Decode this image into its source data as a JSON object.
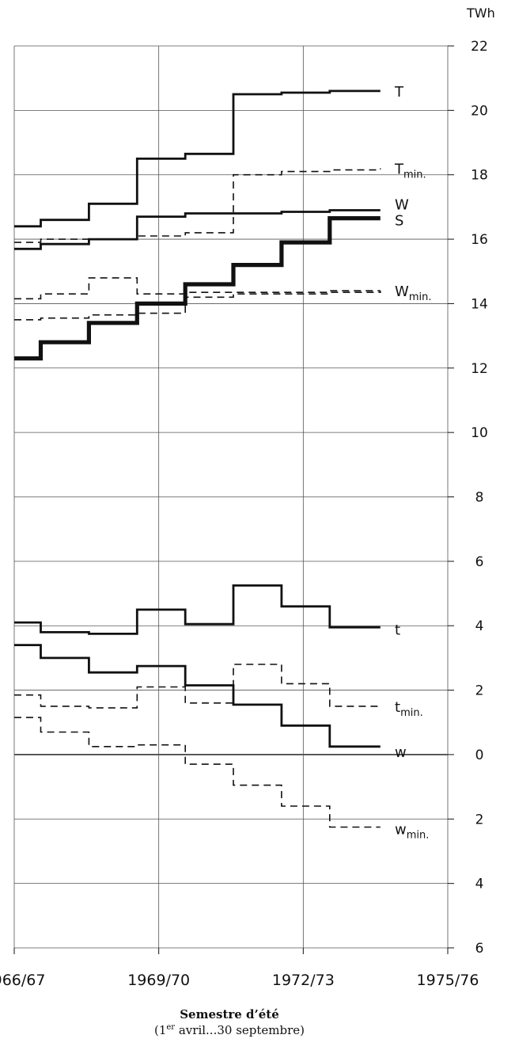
{
  "chart_data": {
    "type": "line",
    "step": true,
    "unit": "TWh",
    "ylim": [
      -6,
      22
    ],
    "y_ticks": [
      {
        "value": 22,
        "label": "22"
      },
      {
        "value": 20,
        "label": "20"
      },
      {
        "value": 18,
        "label": "18"
      },
      {
        "value": 16,
        "label": "16"
      },
      {
        "value": 14,
        "label": "14"
      },
      {
        "value": 12,
        "label": "12"
      },
      {
        "value": 10,
        "label": "10"
      },
      {
        "value": 8,
        "label": "8"
      },
      {
        "value": 6,
        "label": "6"
      },
      {
        "value": 4,
        "label": "4"
      },
      {
        "value": 2,
        "label": "2"
      },
      {
        "value": 0,
        "label": "0"
      },
      {
        "value": -2,
        "label": "2"
      },
      {
        "value": -4,
        "label": "4"
      },
      {
        "value": -6,
        "label": "6"
      }
    ],
    "xlim": [
      0,
      9
    ],
    "x_ticks": [
      {
        "value": 0,
        "label": "1966/67"
      },
      {
        "value": 3,
        "label": "1969/70"
      },
      {
        "value": 6,
        "label": "1972/73"
      },
      {
        "value": 9,
        "label": "1975/76"
      }
    ],
    "x_gridlines": [
      0,
      3,
      6,
      9
    ],
    "grid": true,
    "series": [
      {
        "name": "T",
        "sub": "",
        "style": "solid",
        "weight": "medium",
        "points": [
          [
            0,
            16.4
          ],
          [
            0.55,
            16.6
          ],
          [
            1.55,
            17.1
          ],
          [
            2.55,
            18.5
          ],
          [
            3.55,
            18.65
          ],
          [
            4.55,
            20.5
          ],
          [
            5.55,
            20.55
          ],
          [
            6.55,
            20.6
          ],
          [
            7.6,
            20.6
          ]
        ]
      },
      {
        "name": "T",
        "sub": "min.",
        "style": "dashed",
        "weight": "thin",
        "points": [
          [
            0,
            15.9
          ],
          [
            0.55,
            16.0
          ],
          [
            1.55,
            16.0
          ],
          [
            2.55,
            16.1
          ],
          [
            3.55,
            16.2
          ],
          [
            4.55,
            18.0
          ],
          [
            5.55,
            18.1
          ],
          [
            6.55,
            18.15
          ],
          [
            7.6,
            18.2
          ]
        ]
      },
      {
        "name": "W",
        "sub": "",
        "style": "solid",
        "weight": "medium",
        "points": [
          [
            0,
            15.7
          ],
          [
            0.55,
            15.85
          ],
          [
            1.55,
            16.0
          ],
          [
            2.55,
            16.7
          ],
          [
            3.55,
            16.8
          ],
          [
            4.55,
            16.8
          ],
          [
            5.55,
            16.85
          ],
          [
            6.55,
            16.9
          ],
          [
            7.6,
            16.9
          ]
        ]
      },
      {
        "name": "S",
        "sub": "",
        "style": "solid",
        "weight": "bold",
        "points": [
          [
            0,
            12.3
          ],
          [
            0.55,
            12.8
          ],
          [
            1.55,
            13.4
          ],
          [
            2.55,
            14.0
          ],
          [
            3.55,
            14.6
          ],
          [
            4.55,
            15.2
          ],
          [
            5.55,
            15.9
          ],
          [
            6.55,
            16.65
          ],
          [
            7.6,
            16.65
          ]
        ]
      },
      {
        "name": "W",
        "sub": "min.",
        "style": "dashed",
        "weight": "thin",
        "points": [
          [
            0,
            14.15
          ],
          [
            0.55,
            14.3
          ],
          [
            1.55,
            14.8
          ],
          [
            2.55,
            14.3
          ],
          [
            3.55,
            14.35
          ],
          [
            4.55,
            14.35
          ],
          [
            5.55,
            14.35
          ],
          [
            6.55,
            14.4
          ],
          [
            7.6,
            14.4
          ]
        ]
      },
      {
        "name": "",
        "sub": "",
        "style": "dashed",
        "weight": "thin",
        "points": [
          [
            0,
            13.5
          ],
          [
            0.55,
            13.55
          ],
          [
            1.55,
            13.65
          ],
          [
            2.55,
            13.7
          ],
          [
            3.55,
            14.2
          ],
          [
            4.55,
            14.3
          ],
          [
            5.55,
            14.3
          ],
          [
            6.55,
            14.35
          ],
          [
            7.6,
            14.4
          ]
        ]
      },
      {
        "name": "t",
        "sub": "",
        "style": "solid",
        "weight": "medium",
        "points": [
          [
            0,
            4.1
          ],
          [
            0.55,
            3.8
          ],
          [
            1.55,
            3.75
          ],
          [
            2.55,
            4.5
          ],
          [
            3.55,
            4.05
          ],
          [
            4.55,
            5.25
          ],
          [
            5.55,
            4.6
          ],
          [
            6.55,
            3.95
          ],
          [
            7.6,
            3.95
          ]
        ]
      },
      {
        "name": "t",
        "sub": "min.",
        "style": "dashed",
        "weight": "thin",
        "points": [
          [
            0,
            1.85
          ],
          [
            0.55,
            1.5
          ],
          [
            1.55,
            1.45
          ],
          [
            2.55,
            2.1
          ],
          [
            3.55,
            1.6
          ],
          [
            4.55,
            2.8
          ],
          [
            5.55,
            2.2
          ],
          [
            6.55,
            1.5
          ],
          [
            7.6,
            1.5
          ]
        ]
      },
      {
        "name": "w",
        "sub": "",
        "style": "solid",
        "weight": "medium",
        "points": [
          [
            0,
            3.4
          ],
          [
            0.55,
            3.0
          ],
          [
            1.55,
            2.55
          ],
          [
            2.55,
            2.75
          ],
          [
            3.55,
            2.15
          ],
          [
            4.55,
            1.55
          ],
          [
            5.55,
            0.9
          ],
          [
            6.55,
            0.25
          ],
          [
            7.6,
            0.25
          ]
        ]
      },
      {
        "name": "",
        "sub": "",
        "style": "dashed",
        "weight": "thin",
        "points": [
          [
            0,
            1.15
          ],
          [
            0.55,
            0.7
          ],
          [
            1.55,
            0.25
          ],
          [
            2.55,
            0.3
          ],
          [
            3.55,
            -0.3
          ],
          [
            4.55,
            -0.95
          ],
          [
            5.55,
            -1.6
          ],
          [
            6.55,
            -2.25
          ],
          [
            7.6,
            -2.25
          ]
        ]
      }
    ],
    "labels": [
      {
        "text": "T",
        "sub": "",
        "x": 7.9,
        "y": 20.6
      },
      {
        "text": "T",
        "sub": "min.",
        "x": 7.9,
        "y": 18.2
      },
      {
        "text": "W",
        "sub": "",
        "x": 7.9,
        "y": 17.1
      },
      {
        "text": "S",
        "sub": "",
        "x": 7.9,
        "y": 16.6
      },
      {
        "text": "W",
        "sub": "min.",
        "x": 7.9,
        "y": 14.4
      },
      {
        "text": "t",
        "sub": "",
        "x": 7.9,
        "y": 3.9
      },
      {
        "text": "t",
        "sub": "min.",
        "x": 7.9,
        "y": 1.5
      },
      {
        "text": "w",
        "sub": "",
        "x": 7.9,
        "y": 0.1
      },
      {
        "text": "w",
        "sub": "min.",
        "x": 7.9,
        "y": -2.3
      }
    ]
  },
  "caption": {
    "title": "Semestre d’été",
    "line_pre": "(1",
    "line_sup": "er",
    "line_post": " avril...30 septembre)"
  }
}
